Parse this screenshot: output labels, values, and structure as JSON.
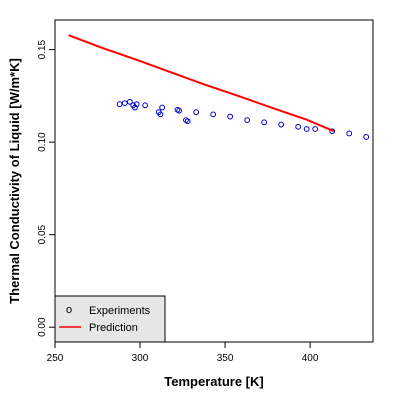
{
  "chart_data": {
    "type": "scatter",
    "title": "",
    "xlabel": "Temperature [K]",
    "ylabel": "Thermal Conductivity of Liquid [W/m*K]",
    "xlim": [
      250,
      437
    ],
    "ylim": [
      -0.008,
      0.166
    ],
    "x_ticks": [
      250,
      300,
      350,
      400
    ],
    "y_ticks": [
      0.0,
      0.05,
      0.1,
      0.15
    ],
    "x_tick_labels": [
      "250",
      "300",
      "350",
      "400"
    ],
    "y_tick_labels": [
      "0.00",
      "0.05",
      "0.10",
      "0.15"
    ],
    "grid": false,
    "legend_position": "bottom-left",
    "colors": {
      "experiments": "#0000cc",
      "prediction": "#ff0000",
      "legend_bg": "#e6e6e6"
    },
    "series": [
      {
        "name": "Experiments",
        "kind": "points",
        "legend_symbol": "o",
        "x": [
          288,
          291,
          294,
          296,
          297,
          298,
          303,
          311,
          312,
          313,
          322,
          323,
          327,
          328,
          333,
          343,
          353,
          363,
          373,
          383,
          393,
          398,
          403,
          413,
          423,
          433
        ],
        "y": [
          0.1205,
          0.1211,
          0.1218,
          0.1199,
          0.1187,
          0.1205,
          0.1199,
          0.1162,
          0.115,
          0.1187,
          0.1175,
          0.117,
          0.1119,
          0.1113,
          0.1162,
          0.115,
          0.1138,
          0.1119,
          0.1107,
          0.1095,
          0.1083,
          0.1071,
          0.1071,
          0.1059,
          0.1047,
          0.1028
        ]
      },
      {
        "name": "Prediction",
        "kind": "line",
        "x": [
          258,
          278,
          298,
          318,
          338,
          358,
          378,
          398,
          414
        ],
        "y": [
          0.1578,
          0.1508,
          0.1445,
          0.1378,
          0.1311,
          0.1249,
          0.1184,
          0.1121,
          0.1059
        ]
      }
    ]
  }
}
